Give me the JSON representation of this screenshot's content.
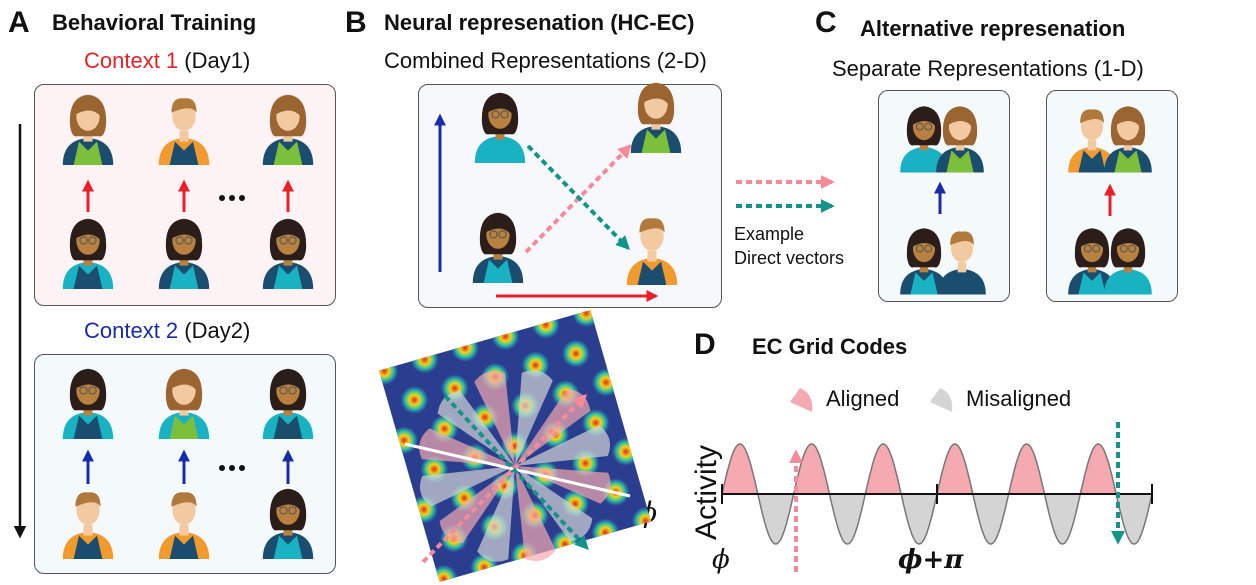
{
  "panelA": {
    "letter": "A",
    "title": "Behavioral Training",
    "context1": {
      "name": "Context 1",
      "day": "(Day1)",
      "color": "#e8202a"
    },
    "context2": {
      "name": "Context 2",
      "day": "(Day2)",
      "color": "#1a2ba8"
    },
    "ellipsis": "..."
  },
  "panelB": {
    "letter": "B",
    "title": "Neural represenation (HC-EC)",
    "subtitle": "Combined Representations (2-D)"
  },
  "panelC": {
    "letter": "C",
    "title": "Alternative represenation",
    "subtitle": "Separate Representations (1-D)",
    "example_line1": "Example",
    "example_line2": "Direct vectors"
  },
  "panelD": {
    "letter": "D",
    "title": "EC Grid Codes",
    "legend_aligned": "Aligned",
    "legend_misaligned": "Misaligned",
    "ylabel": "Activity",
    "xlabel_start": "ϕ",
    "xlabel_mid": "ϕ+π",
    "grid_phi_label": "ϕ"
  },
  "colors": {
    "red": "#e8202a",
    "blue": "#1a2ba8",
    "pink": "#f58a98",
    "teal": "#13948a",
    "navy": "#1b4e6e",
    "cyan": "#18b2c2",
    "green": "#7cbf3a",
    "orange": "#f29a2e",
    "aligned_fill": "#f5a9b1",
    "misaligned_fill": "#d4d4d4"
  }
}
